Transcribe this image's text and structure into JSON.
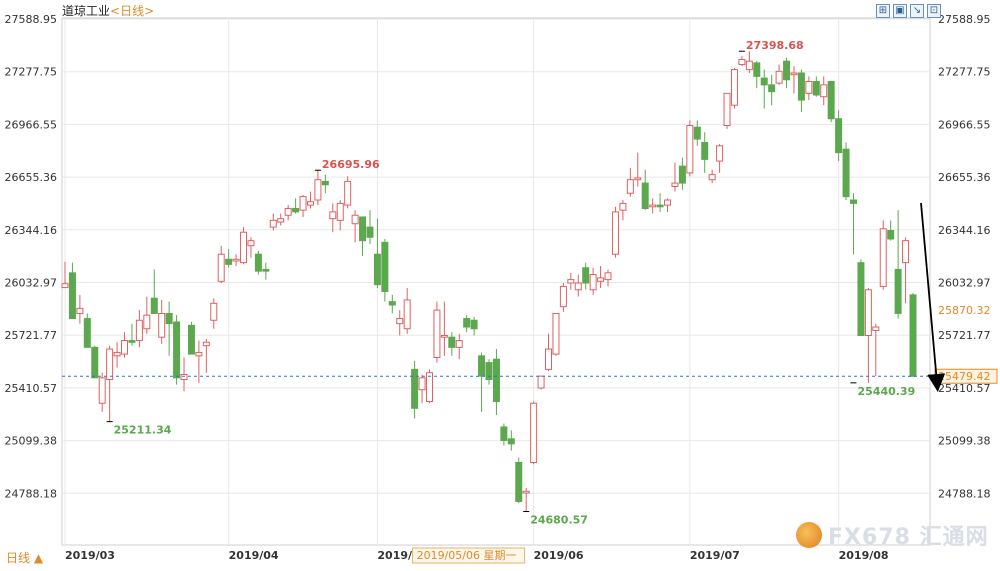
{
  "header": {
    "title": "道琼工业",
    "period": "<日线>",
    "tools": [
      "⊞",
      "▣",
      "↘",
      "⊡"
    ]
  },
  "footer": {
    "period_select": "日线 ▲"
  },
  "watermark": {
    "text": "FX678 汇通网"
  },
  "colors": {
    "up": "#e06060",
    "down": "#5ca84e",
    "grid": "#e8e8e8",
    "axis_text": "#333333",
    "price_line": "#2b78c2",
    "arrow": "#000000"
  },
  "chart_data": {
    "type": "candlestick",
    "title": "道琼工业<日线>",
    "yticks": [
      "27588.95",
      "27277.75",
      "26966.55",
      "26655.36",
      "26344.16",
      "26032.97",
      "25721.77",
      "25410.57",
      "25099.38",
      "24788.18"
    ],
    "y_tick_values": [
      27588.95,
      27277.75,
      26966.55,
      26655.36,
      26344.16,
      26032.97,
      25721.77,
      25410.57,
      25099.38,
      24788.18
    ],
    "xtick_labels": [
      "2019/03",
      "2019/04",
      "2019/05",
      "2019/06",
      "2019/07",
      "2019/08"
    ],
    "xtick_index": [
      0,
      22,
      42,
      63,
      84,
      104
    ],
    "crosshair": {
      "index": 47,
      "label": "2019/05/06 星期一"
    },
    "annotations": [
      {
        "index": 6,
        "value": 25211.34,
        "label": "25211.34",
        "type": "low"
      },
      {
        "index": 34,
        "value": 26695.96,
        "label": "26695.96",
        "type": "high"
      },
      {
        "index": 62,
        "value": 24680.57,
        "label": "24680.57",
        "type": "low"
      },
      {
        "index": 91,
        "value": 27398.68,
        "label": "27398.68",
        "type": "high"
      },
      {
        "index": 106,
        "value": 25440.39,
        "label": "25440.39",
        "type": "low"
      }
    ],
    "right_labels": [
      {
        "value": 25870.32,
        "label": "25870.32"
      },
      {
        "value": 25479.42,
        "label": "25479.42",
        "current": true
      }
    ],
    "current_price": 25479.42,
    "grid": true,
    "candles": [
      {
        "o": 26003,
        "h": 26155,
        "l": 26003,
        "c": 26026
      },
      {
        "o": 26090,
        "h": 26150,
        "l": 25820,
        "c": 25820
      },
      {
        "o": 25850,
        "h": 25960,
        "l": 25790,
        "c": 25880
      },
      {
        "o": 25820,
        "h": 25850,
        "l": 25650,
        "c": 25650
      },
      {
        "o": 25650,
        "h": 25660,
        "l": 25470,
        "c": 25470
      },
      {
        "o": 25320,
        "h": 25500,
        "l": 25270,
        "c": 25470
      },
      {
        "o": 25460,
        "h": 25660,
        "l": 25211,
        "c": 25640
      },
      {
        "o": 25600,
        "h": 25680,
        "l": 25530,
        "c": 25620
      },
      {
        "o": 25610,
        "h": 25740,
        "l": 25590,
        "c": 25690
      },
      {
        "o": 25690,
        "h": 25790,
        "l": 25660,
        "c": 25680
      },
      {
        "o": 25690,
        "h": 25870,
        "l": 25650,
        "c": 25810
      },
      {
        "o": 25760,
        "h": 25950,
        "l": 25730,
        "c": 25840
      },
      {
        "o": 25940,
        "h": 26110,
        "l": 25860,
        "c": 25850
      },
      {
        "o": 25710,
        "h": 25930,
        "l": 25670,
        "c": 25850
      },
      {
        "o": 25850,
        "h": 25920,
        "l": 25600,
        "c": 25790
      },
      {
        "o": 25800,
        "h": 25840,
        "l": 25430,
        "c": 25470
      },
      {
        "o": 25460,
        "h": 25590,
        "l": 25390,
        "c": 25490
      },
      {
        "o": 25780,
        "h": 25800,
        "l": 25610,
        "c": 25610
      },
      {
        "o": 25600,
        "h": 25690,
        "l": 25440,
        "c": 25620
      },
      {
        "o": 25660,
        "h": 25700,
        "l": 25500,
        "c": 25680
      },
      {
        "o": 25810,
        "h": 25940,
        "l": 25760,
        "c": 25910
      },
      {
        "o": 26040,
        "h": 26250,
        "l": 26030,
        "c": 26200
      },
      {
        "o": 26170,
        "h": 26230,
        "l": 26120,
        "c": 26140
      },
      {
        "o": 26160,
        "h": 26200,
        "l": 26130,
        "c": 26170
      },
      {
        "o": 26150,
        "h": 26360,
        "l": 26140,
        "c": 26330
      },
      {
        "o": 26250,
        "h": 26300,
        "l": 26180,
        "c": 26280
      },
      {
        "o": 26200,
        "h": 26220,
        "l": 26080,
        "c": 26100
      },
      {
        "o": 26110,
        "h": 26150,
        "l": 26050,
        "c": 26100
      },
      {
        "o": 26360,
        "h": 26440,
        "l": 26340,
        "c": 26400
      },
      {
        "o": 26390,
        "h": 26440,
        "l": 26370,
        "c": 26410
      },
      {
        "o": 26430,
        "h": 26490,
        "l": 26400,
        "c": 26470
      },
      {
        "o": 26470,
        "h": 26530,
        "l": 26440,
        "c": 26450
      },
      {
        "o": 26460,
        "h": 26550,
        "l": 26420,
        "c": 26540
      },
      {
        "o": 26490,
        "h": 26570,
        "l": 26470,
        "c": 26510
      },
      {
        "o": 26520,
        "h": 26695,
        "l": 26490,
        "c": 26640
      },
      {
        "o": 26630,
        "h": 26670,
        "l": 26560,
        "c": 26610
      },
      {
        "o": 26410,
        "h": 26500,
        "l": 26330,
        "c": 26450
      },
      {
        "o": 26400,
        "h": 26520,
        "l": 26340,
        "c": 26500
      },
      {
        "o": 26490,
        "h": 26660,
        "l": 26470,
        "c": 26630
      },
      {
        "o": 26380,
        "h": 26460,
        "l": 26270,
        "c": 26430
      },
      {
        "o": 26420,
        "h": 26420,
        "l": 26190,
        "c": 26280
      },
      {
        "o": 26360,
        "h": 26460,
        "l": 26260,
        "c": 26300
      },
      {
        "o": 26200,
        "h": 26410,
        "l": 26000,
        "c": 26020
      },
      {
        "o": 26270,
        "h": 26290,
        "l": 25920,
        "c": 25980
      },
      {
        "o": 25920,
        "h": 25960,
        "l": 25850,
        "c": 25900
      },
      {
        "o": 25790,
        "h": 25870,
        "l": 25720,
        "c": 25820
      },
      {
        "o": 25760,
        "h": 26000,
        "l": 25730,
        "c": 25930
      },
      {
        "o": 25520,
        "h": 25570,
        "l": 25230,
        "c": 25290
      },
      {
        "o": 25400,
        "h": 25490,
        "l": 25320,
        "c": 25470
      },
      {
        "o": 25330,
        "h": 25520,
        "l": 25320,
        "c": 25500
      },
      {
        "o": 25590,
        "h": 25920,
        "l": 25560,
        "c": 25870
      },
      {
        "o": 25710,
        "h": 25920,
        "l": 25600,
        "c": 25720
      },
      {
        "o": 25710,
        "h": 25740,
        "l": 25600,
        "c": 25650
      },
      {
        "o": 25650,
        "h": 25730,
        "l": 25580,
        "c": 25690
      },
      {
        "o": 25820,
        "h": 25840,
        "l": 25740,
        "c": 25770
      },
      {
        "o": 25810,
        "h": 25830,
        "l": 25720,
        "c": 25760
      },
      {
        "o": 25600,
        "h": 25620,
        "l": 25270,
        "c": 25480
      },
      {
        "o": 25560,
        "h": 25580,
        "l": 25430,
        "c": 25460
      },
      {
        "o": 25580,
        "h": 25640,
        "l": 25250,
        "c": 25330
      },
      {
        "o": 25180,
        "h": 25200,
        "l": 25070,
        "c": 25100
      },
      {
        "o": 25110,
        "h": 25160,
        "l": 25040,
        "c": 25080
      },
      {
        "o": 24970,
        "h": 25000,
        "l": 24730,
        "c": 24740
      },
      {
        "o": 24790,
        "h": 24820,
        "l": 24680,
        "c": 24800
      },
      {
        "o": 24970,
        "h": 25330,
        "l": 24960,
        "c": 25320
      },
      {
        "o": 25410,
        "h": 25480,
        "l": 25400,
        "c": 25480
      },
      {
        "o": 25520,
        "h": 25730,
        "l": 25510,
        "c": 25640
      },
      {
        "o": 25610,
        "h": 25850,
        "l": 25600,
        "c": 25850
      },
      {
        "o": 25890,
        "h": 26030,
        "l": 25860,
        "c": 26010
      },
      {
        "o": 26030,
        "h": 26090,
        "l": 25990,
        "c": 26050
      },
      {
        "o": 25990,
        "h": 26080,
        "l": 25950,
        "c": 26030
      },
      {
        "o": 26120,
        "h": 26150,
        "l": 25990,
        "c": 26030
      },
      {
        "o": 25990,
        "h": 26120,
        "l": 25960,
        "c": 26080
      },
      {
        "o": 26040,
        "h": 26130,
        "l": 26000,
        "c": 26060
      },
      {
        "o": 26050,
        "h": 26110,
        "l": 26010,
        "c": 26090
      },
      {
        "o": 26200,
        "h": 26480,
        "l": 26180,
        "c": 26450
      },
      {
        "o": 26460,
        "h": 26520,
        "l": 26400,
        "c": 26500
      },
      {
        "o": 26560,
        "h": 26710,
        "l": 26540,
        "c": 26640
      },
      {
        "o": 26640,
        "h": 26800,
        "l": 26600,
        "c": 26650
      },
      {
        "o": 26620,
        "h": 26700,
        "l": 26460,
        "c": 26470
      },
      {
        "o": 26480,
        "h": 26530,
        "l": 26440,
        "c": 26490
      },
      {
        "o": 26490,
        "h": 26560,
        "l": 26450,
        "c": 26480
      },
      {
        "o": 26490,
        "h": 26530,
        "l": 26450,
        "c": 26520
      },
      {
        "o": 26600,
        "h": 26740,
        "l": 26570,
        "c": 26620
      },
      {
        "o": 26720,
        "h": 26770,
        "l": 26580,
        "c": 26620
      },
      {
        "o": 26680,
        "h": 26990,
        "l": 26660,
        "c": 26960
      },
      {
        "o": 26950,
        "h": 26990,
        "l": 26840,
        "c": 26880
      },
      {
        "o": 26860,
        "h": 26920,
        "l": 26680,
        "c": 26760
      },
      {
        "o": 26640,
        "h": 26700,
        "l": 26620,
        "c": 26670
      },
      {
        "o": 26750,
        "h": 26850,
        "l": 26680,
        "c": 26840
      },
      {
        "o": 26960,
        "h": 27150,
        "l": 26940,
        "c": 27150
      },
      {
        "o": 27080,
        "h": 27300,
        "l": 27060,
        "c": 27290
      },
      {
        "o": 27320,
        "h": 27370,
        "l": 27310,
        "c": 27350
      },
      {
        "o": 27290,
        "h": 27398,
        "l": 27270,
        "c": 27340
      },
      {
        "o": 27330,
        "h": 27340,
        "l": 27180,
        "c": 27250
      },
      {
        "o": 27240,
        "h": 27290,
        "l": 27060,
        "c": 27200
      },
      {
        "o": 27200,
        "h": 27260,
        "l": 27080,
        "c": 27160
      },
      {
        "o": 27210,
        "h": 27320,
        "l": 27200,
        "c": 27280
      },
      {
        "o": 27340,
        "h": 27360,
        "l": 27180,
        "c": 27230
      },
      {
        "o": 27260,
        "h": 27310,
        "l": 27150,
        "c": 27270
      },
      {
        "o": 27270,
        "h": 27290,
        "l": 27040,
        "c": 27110
      },
      {
        "o": 27150,
        "h": 27250,
        "l": 27110,
        "c": 27220
      },
      {
        "o": 27220,
        "h": 27250,
        "l": 27130,
        "c": 27140
      },
      {
        "o": 27130,
        "h": 27250,
        "l": 27080,
        "c": 27200
      },
      {
        "o": 27220,
        "h": 27220,
        "l": 26980,
        "c": 27000
      },
      {
        "o": 27000,
        "h": 27050,
        "l": 26750,
        "c": 26800
      },
      {
        "o": 26820,
        "h": 26860,
        "l": 26520,
        "c": 26540
      },
      {
        "o": 26520,
        "h": 26560,
        "l": 26200,
        "c": 26500
      },
      {
        "o": 26150,
        "h": 26170,
        "l": 25720,
        "c": 25720
      },
      {
        "o": 25720,
        "h": 26000,
        "l": 25440,
        "c": 25990
      },
      {
        "o": 25750,
        "h": 25790,
        "l": 25480,
        "c": 25770
      },
      {
        "o": 26010,
        "h": 26400,
        "l": 25990,
        "c": 26350
      },
      {
        "o": 26340,
        "h": 26400,
        "l": 26280,
        "c": 26290
      },
      {
        "o": 26110,
        "h": 26460,
        "l": 25820,
        "c": 25850
      },
      {
        "o": 26150,
        "h": 26300,
        "l": 25910,
        "c": 26280
      },
      {
        "o": 25960,
        "h": 25970,
        "l": 25479,
        "c": 25479
      }
    ]
  }
}
